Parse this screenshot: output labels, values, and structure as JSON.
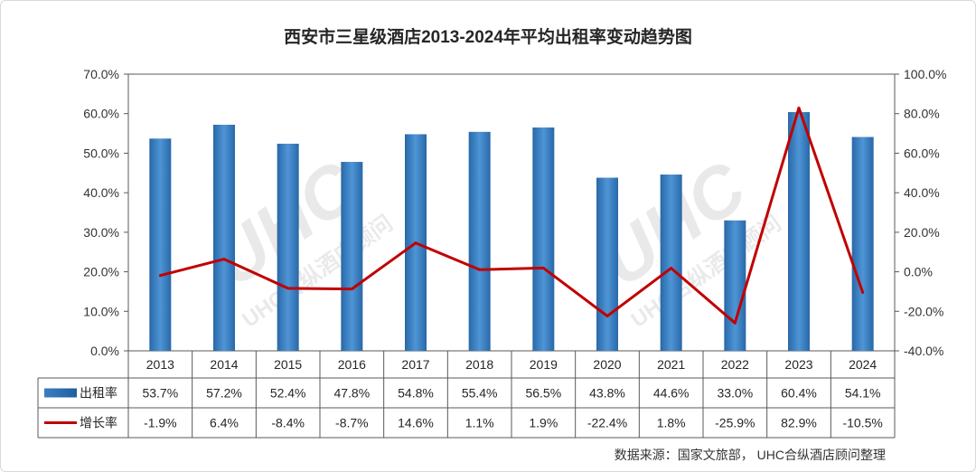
{
  "chart_data": {
    "type": "bar",
    "title": "西安市三星级酒店2013-2024年平均出租率变动趋势图",
    "categories": [
      "2013",
      "2014",
      "2015",
      "2016",
      "2017",
      "2018",
      "2019",
      "2020",
      "2021",
      "2022",
      "2023",
      "2024"
    ],
    "series": [
      {
        "name": "出租率",
        "type": "bar",
        "axis": "left",
        "color": "#2e75b6",
        "values": [
          53.7,
          57.2,
          52.4,
          47.8,
          54.8,
          55.4,
          56.5,
          43.8,
          44.6,
          33.0,
          60.4,
          54.1
        ],
        "labels": [
          "53.7%",
          "57.2%",
          "52.4%",
          "47.8%",
          "54.8%",
          "55.4%",
          "56.5%",
          "43.8%",
          "44.6%",
          "33.0%",
          "60.4%",
          "54.1%"
        ]
      },
      {
        "name": "增长率",
        "type": "line",
        "axis": "right",
        "color": "#c00000",
        "values": [
          -1.9,
          6.4,
          -8.4,
          -8.7,
          14.6,
          1.1,
          1.9,
          -22.4,
          1.8,
          -25.9,
          82.9,
          -10.5
        ],
        "labels": [
          "-1.9%",
          "6.4%",
          "-8.4%",
          "-8.7%",
          "14.6%",
          "1.1%",
          "1.9%",
          "-22.4%",
          "1.8%",
          "-25.9%",
          "82.9%",
          "-10.5%"
        ]
      }
    ],
    "y_left": {
      "min": 0,
      "max": 70,
      "ticks": [
        "0.0%",
        "10.0%",
        "20.0%",
        "30.0%",
        "40.0%",
        "50.0%",
        "60.0%",
        "70.0%"
      ]
    },
    "y_right": {
      "min": -40,
      "max": 100,
      "ticks": [
        "-40.0%",
        "-20.0%",
        "0.0%",
        "20.0%",
        "40.0%",
        "60.0%",
        "80.0%",
        "100.0%"
      ]
    },
    "grid": false,
    "legend": "data-table",
    "watermark": "UHC合纵酒店顾问",
    "source": "数据来源：国家文旅部， UHC合纵酒店顾问整理"
  }
}
